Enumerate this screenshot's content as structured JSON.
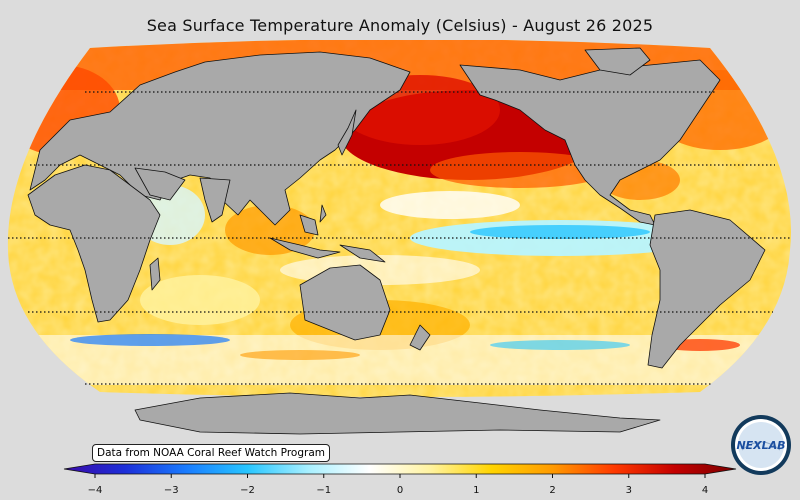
{
  "title": "Sea Surface Temperature Anomaly (Celsius) - August 26 2025",
  "credit": "Data from NOAA Coral Reef Watch Program",
  "logo_text": "NEXLAB",
  "colorbar": {
    "min": -4,
    "max": 4,
    "ticks": [
      "−4",
      "−3",
      "−2",
      "−1",
      "0",
      "1",
      "2",
      "3",
      "4"
    ],
    "colors": [
      "#3a0aa8",
      "#1d2fd9",
      "#1a7cff",
      "#28c6ff",
      "#a8f0ff",
      "#ffffff",
      "#fff3a0",
      "#ffd400",
      "#ff9a00",
      "#ff3a00",
      "#c40000",
      "#7a0000"
    ]
  },
  "map": {
    "land_color": "#a9a9a9",
    "ocean_base": "#ffe680",
    "projection": "Robinson",
    "graticule_latitudes": [
      60,
      30,
      0,
      -30,
      -60
    ]
  }
}
